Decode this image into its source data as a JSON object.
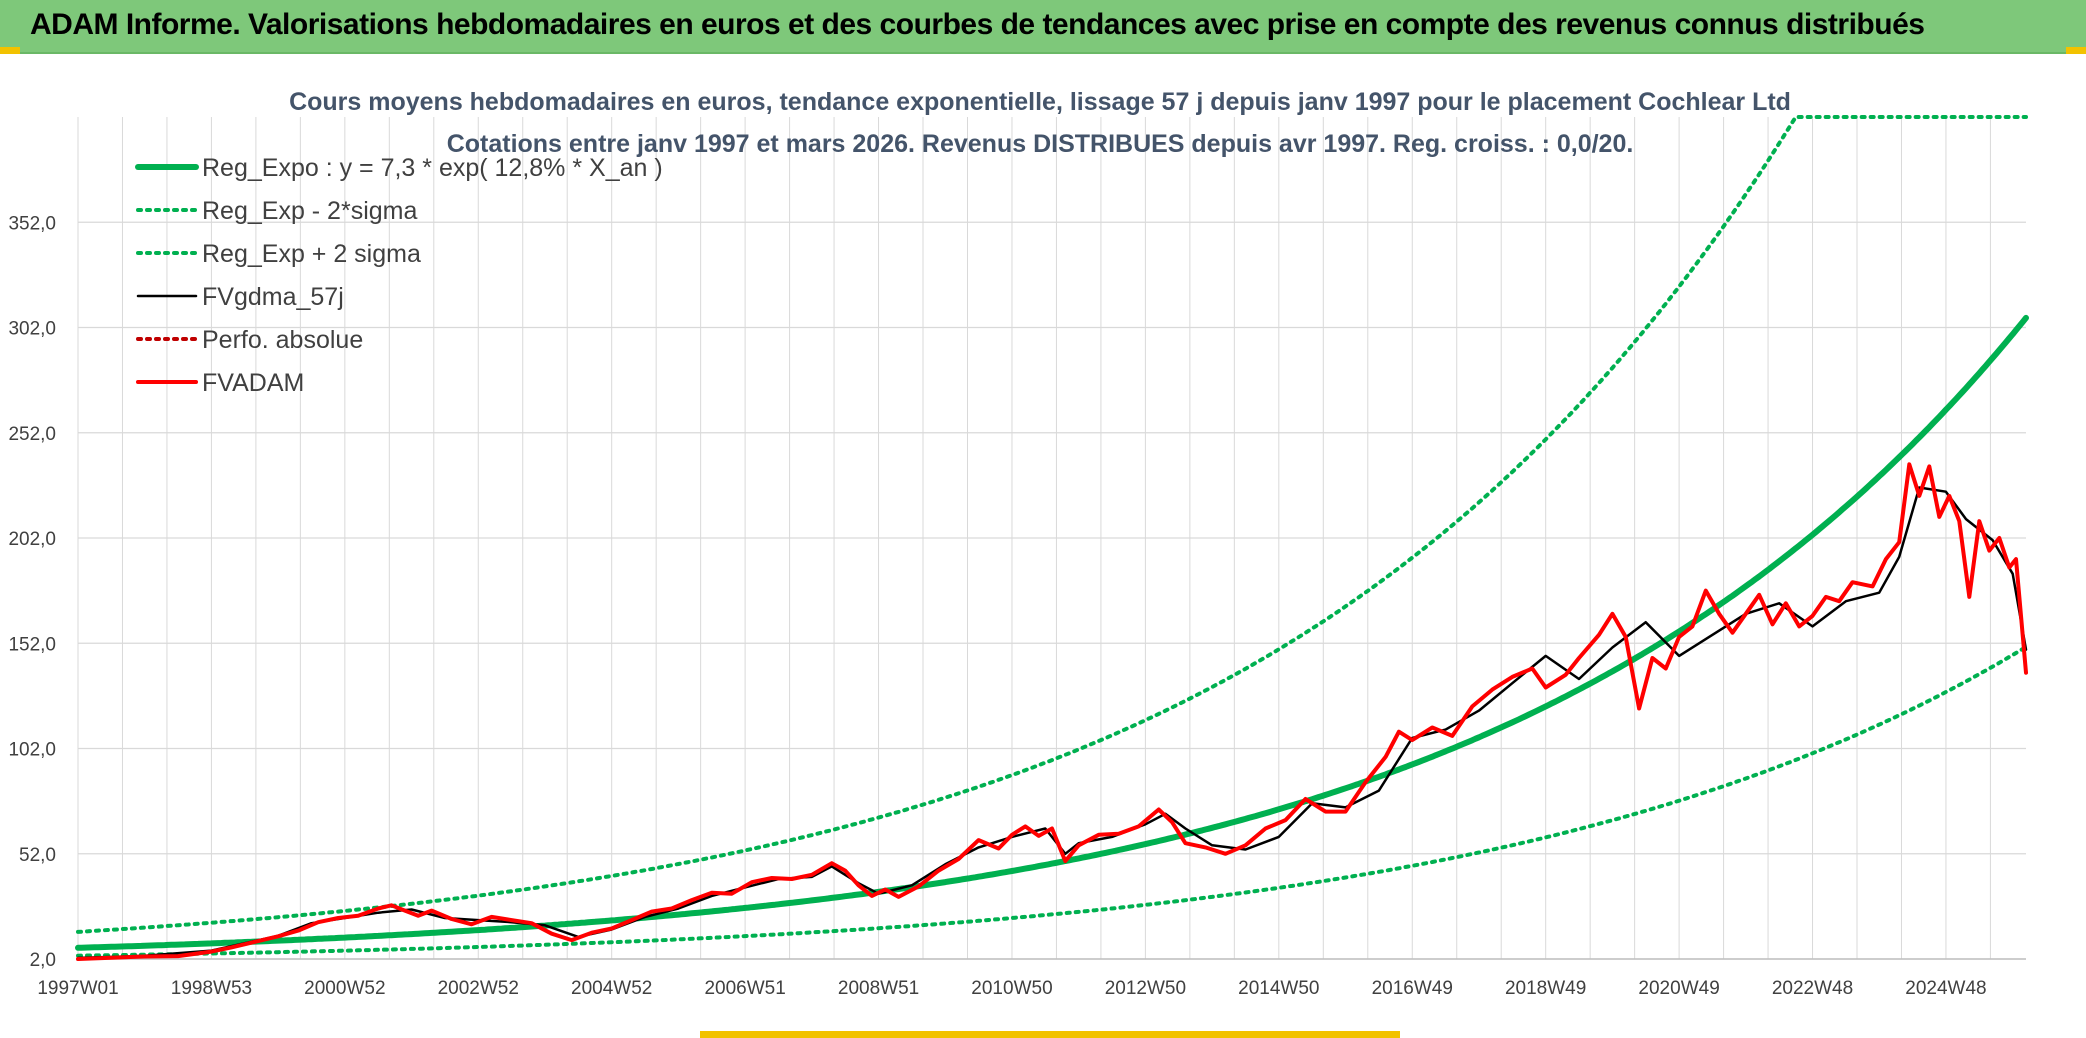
{
  "header": {
    "title": "ADAM Informe. Valorisations hebdomadaires en euros et des courbes de tendances avec prise en compte des revenus connus distribués",
    "background_color": "#7ec87a",
    "corner_color": "#f2c200"
  },
  "chart_data": {
    "type": "line",
    "title": "Cours moyens hebdomadaires en euros, tendance exponentielle, lissage 57 j depuis janv 1997 pour le placement Cochlear Ltd",
    "subtitle": "Cotations entre janv 1997 et mars 2026. Revenus DISTRIBUES depuis avr 1997. Reg. croiss. : 0,0/20.",
    "xlabel": "",
    "ylabel": "",
    "x_range": [
      1997.0,
      2026.2
    ],
    "ylim": [
      2.0,
      402.0
    ],
    "y_ticks": [
      "2,0",
      "52,0",
      "102,0",
      "152,0",
      "202,0",
      "252,0",
      "302,0",
      "352,0"
    ],
    "y_tick_values": [
      2,
      52,
      102,
      152,
      202,
      252,
      302,
      352
    ],
    "x_ticks": [
      "1997W01",
      "1998W53",
      "2000W52",
      "2002W52",
      "2004W52",
      "2006W51",
      "2008W51",
      "2010W50",
      "2012W50",
      "2014W50",
      "2016W49",
      "2018W49",
      "2020W49",
      "2022W48",
      "2024W48"
    ],
    "x_tick_values": [
      1997.0,
      1999.0,
      2001.0,
      2003.0,
      2005.0,
      2007.0,
      2009.0,
      2011.0,
      2013.0,
      2015.0,
      2017.0,
      2019.0,
      2021.0,
      2023.0,
      2025.0
    ],
    "grid": true,
    "legend_position": "top-left",
    "regression": {
      "a": 7.3,
      "rate": 0.128,
      "sigma_factor_low": 0.49,
      "sigma_factor_high": 2.04
    },
    "series": [
      {
        "name": "Reg_Expo : y = 7,3 * exp( 12,8% *  X_an )",
        "style": "solid-thick",
        "color": "#00b050",
        "values": [
          [
            1997.0,
            7.3
          ],
          [
            1999.0,
            9.4
          ],
          [
            2001.0,
            12.2
          ],
          [
            2003.0,
            15.8
          ],
          [
            2005.0,
            20.4
          ],
          [
            2007.0,
            26.4
          ],
          [
            2009.0,
            34.2
          ],
          [
            2011.0,
            44.2
          ],
          [
            2013.0,
            57.2
          ],
          [
            2015.0,
            74.0
          ],
          [
            2017.0,
            95.7
          ],
          [
            2019.0,
            123.8
          ],
          [
            2021.0,
            160.2
          ],
          [
            2023.0,
            207.2
          ],
          [
            2025.0,
            268.1
          ],
          [
            2026.2,
            311.0
          ]
        ]
      },
      {
        "name": "Reg_Exp - 2*sigma",
        "style": "dotted",
        "color": "#00b050",
        "values": [
          [
            1997.0,
            3.6
          ],
          [
            1999.0,
            4.6
          ],
          [
            2001.0,
            6.0
          ],
          [
            2003.0,
            7.7
          ],
          [
            2005.0,
            10.0
          ],
          [
            2007.0,
            12.9
          ],
          [
            2009.0,
            16.8
          ],
          [
            2011.0,
            21.7
          ],
          [
            2013.0,
            28.0
          ],
          [
            2015.0,
            36.3
          ],
          [
            2017.0,
            46.9
          ],
          [
            2019.0,
            60.7
          ],
          [
            2021.0,
            78.5
          ],
          [
            2023.0,
            101.5
          ],
          [
            2025.0,
            131.4
          ],
          [
            2026.2,
            152.4
          ]
        ]
      },
      {
        "name": "Reg_Exp + 2 sigma",
        "style": "dotted",
        "color": "#00b050",
        "values": [
          [
            1997.0,
            14.9
          ],
          [
            1999.0,
            19.2
          ],
          [
            2001.0,
            24.9
          ],
          [
            2003.0,
            32.2
          ],
          [
            2005.0,
            41.6
          ],
          [
            2007.0,
            53.9
          ],
          [
            2009.0,
            69.7
          ],
          [
            2011.0,
            90.2
          ],
          [
            2013.0,
            116.7
          ],
          [
            2015.0,
            151.0
          ],
          [
            2017.0,
            195.3
          ],
          [
            2019.0,
            252.6
          ],
          [
            2021.0,
            326.8
          ],
          [
            2022.2,
            384.0
          ],
          [
            2023.6,
            402.0
          ],
          [
            2026.2,
            402.0
          ]
        ]
      },
      {
        "name": "FVgdma_57j",
        "style": "solid-thin",
        "color": "#000000",
        "values": [
          [
            1997.0,
            2.5
          ],
          [
            1998.0,
            3.5
          ],
          [
            1999.0,
            6.0
          ],
          [
            2000.0,
            13.0
          ],
          [
            2000.5,
            19.0
          ],
          [
            2001.0,
            21.5
          ],
          [
            2001.5,
            24.0
          ],
          [
            2002.0,
            25.5
          ],
          [
            2002.5,
            21.5
          ],
          [
            2003.0,
            20.5
          ],
          [
            2003.5,
            19.5
          ],
          [
            2004.0,
            18.0
          ],
          [
            2004.5,
            12.5
          ],
          [
            2005.0,
            16.0
          ],
          [
            2005.5,
            22.0
          ],
          [
            2006.0,
            26.0
          ],
          [
            2006.5,
            32.0
          ],
          [
            2007.0,
            36.0
          ],
          [
            2007.5,
            40.0
          ],
          [
            2008.0,
            41.0
          ],
          [
            2008.3,
            46.0
          ],
          [
            2008.7,
            38.0
          ],
          [
            2009.0,
            33.0
          ],
          [
            2009.5,
            37.0
          ],
          [
            2010.0,
            47.0
          ],
          [
            2010.5,
            55.0
          ],
          [
            2011.0,
            60.0
          ],
          [
            2011.5,
            64.0
          ],
          [
            2011.8,
            52.0
          ],
          [
            2012.0,
            57.0
          ],
          [
            2012.5,
            60.0
          ],
          [
            2013.0,
            66.0
          ],
          [
            2013.3,
            71.0
          ],
          [
            2013.6,
            64.0
          ],
          [
            2014.0,
            56.0
          ],
          [
            2014.5,
            54.0
          ],
          [
            2015.0,
            60.0
          ],
          [
            2015.5,
            76.0
          ],
          [
            2016.0,
            74.0
          ],
          [
            2016.5,
            82.0
          ],
          [
            2017.0,
            107.0
          ],
          [
            2017.5,
            111.0
          ],
          [
            2018.0,
            120.0
          ],
          [
            2018.5,
            133.0
          ],
          [
            2019.0,
            146.0
          ],
          [
            2019.5,
            135.0
          ],
          [
            2020.0,
            150.0
          ],
          [
            2020.5,
            162.0
          ],
          [
            2021.0,
            146.0
          ],
          [
            2021.5,
            156.0
          ],
          [
            2022.0,
            166.0
          ],
          [
            2022.5,
            171.0
          ],
          [
            2023.0,
            160.0
          ],
          [
            2023.5,
            172.0
          ],
          [
            2024.0,
            176.0
          ],
          [
            2024.3,
            193.0
          ],
          [
            2024.6,
            226.0
          ],
          [
            2025.0,
            224.0
          ],
          [
            2025.3,
            211.0
          ],
          [
            2025.7,
            201.0
          ],
          [
            2026.0,
            185.0
          ],
          [
            2026.2,
            149.0
          ]
        ]
      },
      {
        "name": "Perfo. absolue",
        "style": "dotted",
        "color": "#c00000",
        "values": []
      },
      {
        "name": "FVADAM",
        "style": "solid-thick",
        "color": "#ff0000",
        "values": [
          [
            1997.0,
            2.0
          ],
          [
            1997.5,
            2.6
          ],
          [
            1998.0,
            3.2
          ],
          [
            1998.5,
            3.4
          ],
          [
            1999.0,
            5.5
          ],
          [
            1999.3,
            7.5
          ],
          [
            1999.7,
            10.5
          ],
          [
            2000.0,
            12.8
          ],
          [
            2000.3,
            15.5
          ],
          [
            2000.6,
            19.5
          ],
          [
            2000.9,
            21.5
          ],
          [
            2001.2,
            22.5
          ],
          [
            2001.5,
            26.0
          ],
          [
            2001.7,
            27.5
          ],
          [
            2001.9,
            25.0
          ],
          [
            2002.1,
            22.5
          ],
          [
            2002.3,
            25.0
          ],
          [
            2002.6,
            21.0
          ],
          [
            2002.9,
            18.5
          ],
          [
            2003.2,
            22.0
          ],
          [
            2003.5,
            20.5
          ],
          [
            2003.8,
            19.0
          ],
          [
            2004.1,
            14.0
          ],
          [
            2004.4,
            11.0
          ],
          [
            2004.7,
            14.5
          ],
          [
            2005.0,
            16.5
          ],
          [
            2005.3,
            20.5
          ],
          [
            2005.6,
            24.5
          ],
          [
            2005.9,
            26.0
          ],
          [
            2006.2,
            30.0
          ],
          [
            2006.5,
            33.5
          ],
          [
            2006.8,
            33.0
          ],
          [
            2007.1,
            38.5
          ],
          [
            2007.4,
            40.5
          ],
          [
            2007.7,
            40.0
          ],
          [
            2008.0,
            42.0
          ],
          [
            2008.3,
            47.5
          ],
          [
            2008.5,
            44.0
          ],
          [
            2008.7,
            37.0
          ],
          [
            2008.9,
            32.0
          ],
          [
            2009.1,
            35.0
          ],
          [
            2009.3,
            31.5
          ],
          [
            2009.6,
            36.5
          ],
          [
            2009.9,
            44.0
          ],
          [
            2010.2,
            49.5
          ],
          [
            2010.5,
            58.5
          ],
          [
            2010.8,
            54.5
          ],
          [
            2011.0,
            61.0
          ],
          [
            2011.2,
            65.0
          ],
          [
            2011.4,
            60.5
          ],
          [
            2011.6,
            64.0
          ],
          [
            2011.8,
            48.5
          ],
          [
            2012.0,
            56.0
          ],
          [
            2012.3,
            61.0
          ],
          [
            2012.6,
            61.5
          ],
          [
            2012.9,
            65.0
          ],
          [
            2013.2,
            73.0
          ],
          [
            2013.4,
            67.0
          ],
          [
            2013.6,
            57.0
          ],
          [
            2013.9,
            55.0
          ],
          [
            2014.2,
            52.0
          ],
          [
            2014.5,
            56.0
          ],
          [
            2014.8,
            64.0
          ],
          [
            2015.1,
            68.0
          ],
          [
            2015.4,
            78.0
          ],
          [
            2015.7,
            72.0
          ],
          [
            2016.0,
            72.0
          ],
          [
            2016.3,
            86.0
          ],
          [
            2016.6,
            98.0
          ],
          [
            2016.8,
            110.0
          ],
          [
            2017.0,
            106.0
          ],
          [
            2017.3,
            112.0
          ],
          [
            2017.6,
            108.0
          ],
          [
            2017.9,
            122.0
          ],
          [
            2018.2,
            130.0
          ],
          [
            2018.5,
            136.0
          ],
          [
            2018.8,
            140.0
          ],
          [
            2019.0,
            131.0
          ],
          [
            2019.3,
            137.0
          ],
          [
            2019.5,
            145.0
          ],
          [
            2019.8,
            156.0
          ],
          [
            2020.0,
            166.0
          ],
          [
            2020.2,
            155.0
          ],
          [
            2020.4,
            121.0
          ],
          [
            2020.6,
            145.0
          ],
          [
            2020.8,
            140.0
          ],
          [
            2021.0,
            155.0
          ],
          [
            2021.2,
            160.0
          ],
          [
            2021.4,
            177.0
          ],
          [
            2021.6,
            166.0
          ],
          [
            2021.8,
            157.0
          ],
          [
            2022.0,
            166.0
          ],
          [
            2022.2,
            175.0
          ],
          [
            2022.4,
            161.0
          ],
          [
            2022.6,
            171.0
          ],
          [
            2022.8,
            160.0
          ],
          [
            2023.0,
            165.0
          ],
          [
            2023.2,
            174.0
          ],
          [
            2023.4,
            172.0
          ],
          [
            2023.6,
            181.0
          ],
          [
            2023.9,
            179.0
          ],
          [
            2024.1,
            192.0
          ],
          [
            2024.3,
            200.0
          ],
          [
            2024.45,
            237.0
          ],
          [
            2024.6,
            222.0
          ],
          [
            2024.75,
            236.0
          ],
          [
            2024.9,
            212.0
          ],
          [
            2025.05,
            222.0
          ],
          [
            2025.2,
            210.0
          ],
          [
            2025.35,
            174.0
          ],
          [
            2025.5,
            210.0
          ],
          [
            2025.65,
            196.0
          ],
          [
            2025.8,
            202.0
          ],
          [
            2025.95,
            188.0
          ],
          [
            2026.05,
            192.0
          ],
          [
            2026.2,
            138.0
          ]
        ]
      }
    ]
  }
}
